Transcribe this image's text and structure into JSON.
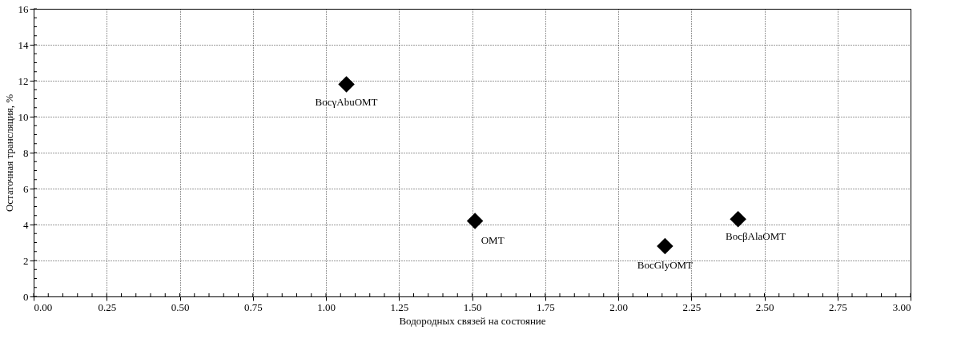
{
  "chart_data": {
    "type": "scatter",
    "xlabel": "Водородных связей на состояние",
    "ylabel": "Остаточная трансляция, %",
    "x": [
      1.07,
      1.51,
      2.16,
      2.41
    ],
    "series": [
      {
        "color": "#000000",
        "values": [
          11.8,
          4.2,
          2.8,
          4.3
        ]
      }
    ],
    "marker": "diamond",
    "grid": true,
    "xlim": [
      0,
      3
    ],
    "ylim": [
      0,
      16
    ],
    "xticks": [
      {
        "value": 0,
        "label": "0.00"
      },
      {
        "value": 0.25,
        "label": "0.25"
      },
      {
        "value": 0.5,
        "label": "0.50"
      },
      {
        "value": 0.75,
        "label": "0.75"
      },
      {
        "value": 1,
        "label": "1.00"
      },
      {
        "value": 1.25,
        "label": "1.25"
      },
      {
        "value": 1.5,
        "label": "1.50"
      },
      {
        "value": 1.75,
        "label": "1.75"
      },
      {
        "value": 2,
        "label": "2.00"
      },
      {
        "value": 2.25,
        "label": "2.25"
      },
      {
        "value": 2.5,
        "label": "2.50"
      },
      {
        "value": 2.75,
        "label": "2.75"
      },
      {
        "value": 3,
        "label": "3.00"
      }
    ],
    "yticks": [
      0,
      2,
      4,
      6,
      8,
      10,
      12,
      14,
      16
    ],
    "annotations": [
      {
        "text": "BocγAbuOMT",
        "x": 1.07,
        "y": 11.8
      },
      {
        "text": "OMT",
        "x": 1.51,
        "y": 4.2
      },
      {
        "text": "BocGlyOMT",
        "x": 2.16,
        "y": 2.8
      },
      {
        "text": "BocβAlaOMT",
        "x": 2.41,
        "y": 4.3
      }
    ]
  }
}
